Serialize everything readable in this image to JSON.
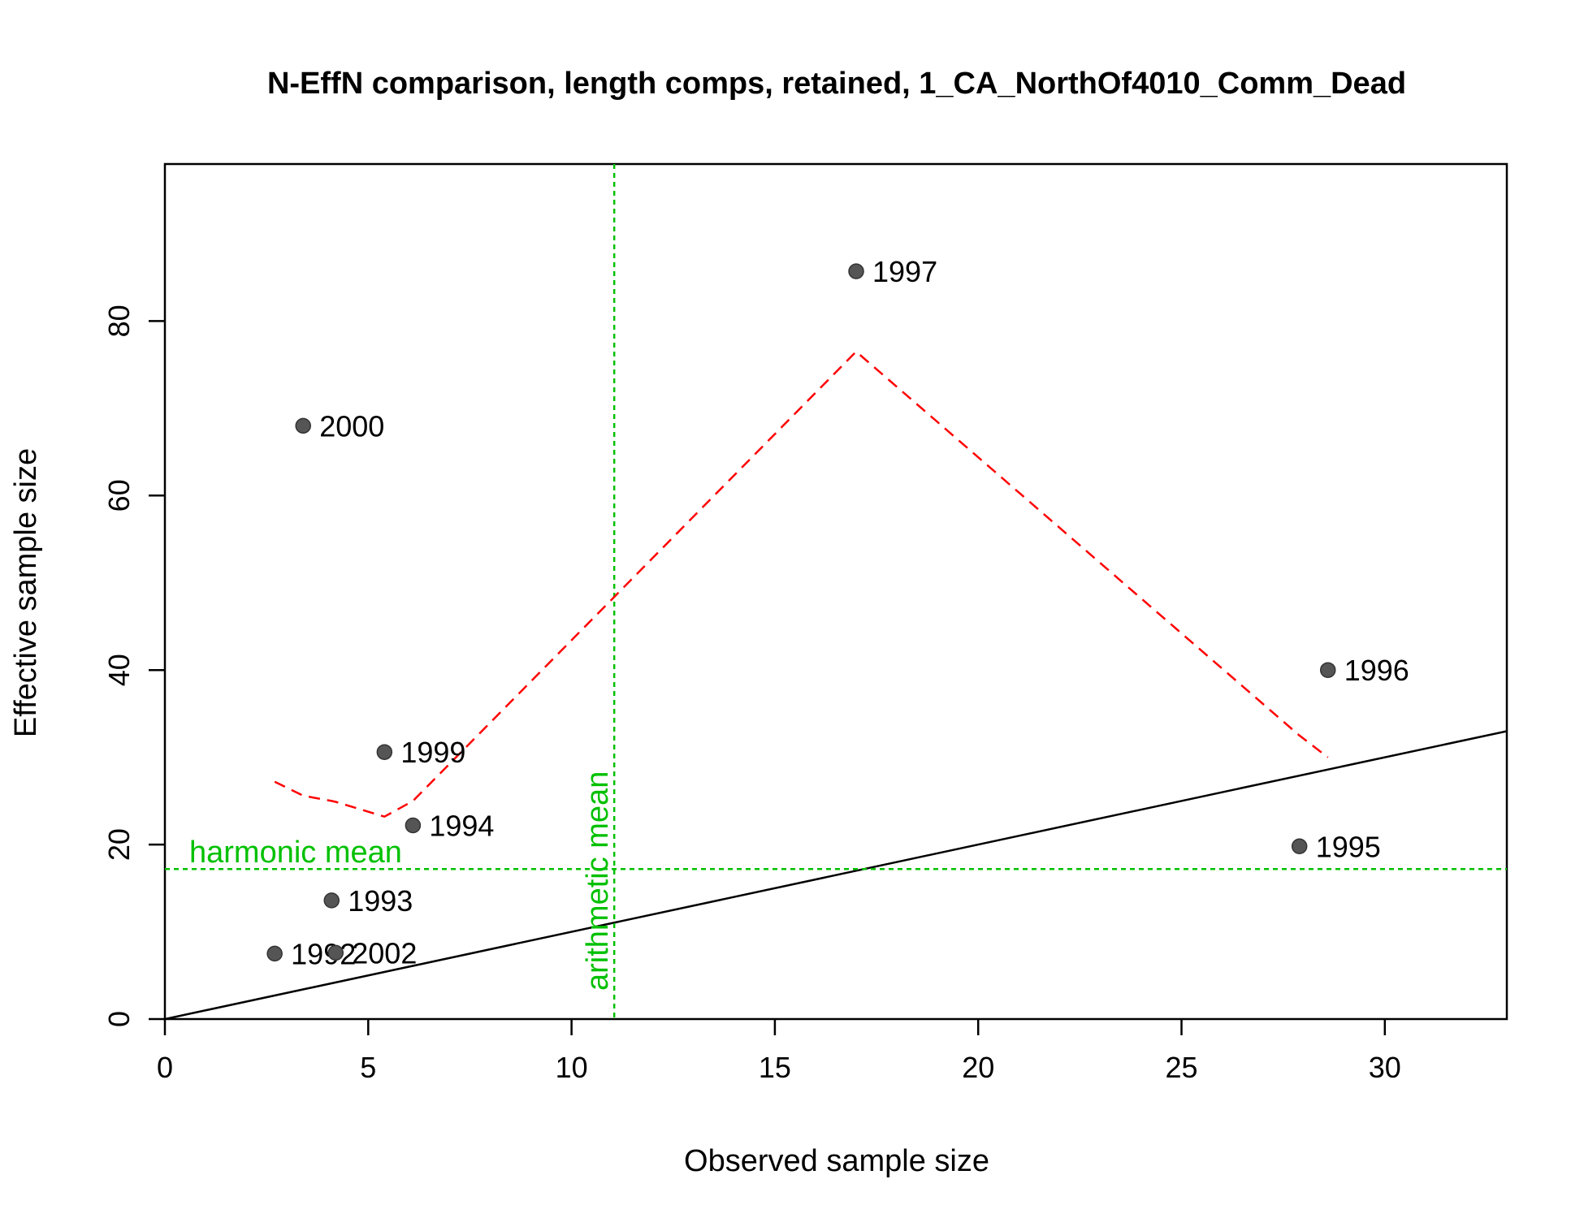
{
  "chart_data": {
    "type": "scatter",
    "title": "N-EffN comparison, length comps, retained, 1_CA_NorthOf4010_Comm_Dead",
    "xlabel": "Observed sample size",
    "ylabel": "Effective sample size",
    "xlim": [
      0,
      33
    ],
    "ylim": [
      0,
      98
    ],
    "xticks": [
      0,
      5,
      10,
      15,
      20,
      25,
      30
    ],
    "yticks": [
      0,
      20,
      40,
      60,
      80
    ],
    "points": [
      {
        "label": "1992",
        "x": 2.7,
        "y": 7.5
      },
      {
        "label": "1993",
        "x": 4.1,
        "y": 13.6
      },
      {
        "label": "1994",
        "x": 6.1,
        "y": 22.2
      },
      {
        "label": "1995",
        "x": 27.9,
        "y": 19.8
      },
      {
        "label": "1996",
        "x": 28.6,
        "y": 40.0
      },
      {
        "label": "1997",
        "x": 17.0,
        "y": 85.7
      },
      {
        "label": "1999",
        "x": 5.4,
        "y": 30.6
      },
      {
        "label": "2000",
        "x": 3.4,
        "y": 68.0
      },
      {
        "label": "2002",
        "x": 4.2,
        "y": 7.6
      }
    ],
    "reference_line": {
      "slope": 1,
      "intercept": 0,
      "color": "#000000"
    },
    "smoother": {
      "color": "#ff0000",
      "style": "dashed",
      "points": [
        [
          2.7,
          27.2
        ],
        [
          3.4,
          25.6
        ],
        [
          4.1,
          25.0
        ],
        [
          4.2,
          24.9
        ],
        [
          5.4,
          23.2
        ],
        [
          6.1,
          25.0
        ],
        [
          17.0,
          76.5
        ],
        [
          27.9,
          32.5
        ],
        [
          28.6,
          30.0
        ]
      ]
    },
    "harmonic_mean": {
      "label": "harmonic mean",
      "value": 17.2,
      "color": "#00c000"
    },
    "arithmetic_mean": {
      "label": "arithmetic mean",
      "value": 11.05,
      "color": "#00c000"
    },
    "point_color": "#555555"
  }
}
